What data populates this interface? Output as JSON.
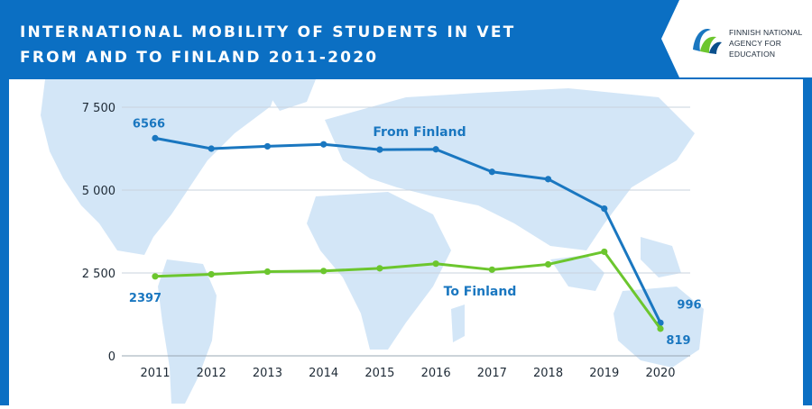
{
  "header": {
    "title_line1": "INTERNATIONAL MOBILITY OF STUDENTS IN VET",
    "title_line2": "FROM AND TO FINLAND 2011-2020",
    "logo_line1": "FINNISH NATIONAL",
    "logo_line2": "AGENCY FOR EDUCATION"
  },
  "colors": {
    "background": "#0b6fc3",
    "from_finland": "#1a77c0",
    "to_finland": "#6cc62e",
    "map": "#d3e6f7"
  },
  "chart_data": {
    "type": "line",
    "title": "INTERNATIONAL MOBILITY OF STUDENTS IN VET FROM AND TO FINLAND 2011-2020",
    "categories": [
      "2011",
      "2012",
      "2013",
      "2014",
      "2015",
      "2016",
      "2017",
      "2018",
      "2019",
      "2020"
    ],
    "series": [
      {
        "name": "From Finland",
        "values": [
          6566,
          6250,
          6320,
          6380,
          6220,
          6230,
          5550,
          5330,
          4440,
          996
        ]
      },
      {
        "name": "To Finland",
        "values": [
          2397,
          2460,
          2540,
          2560,
          2640,
          2780,
          2600,
          2760,
          3140,
          819
        ]
      }
    ],
    "data_labels": [
      {
        "series": "From Finland",
        "category": "2011",
        "text": "6566"
      },
      {
        "series": "To Finland",
        "category": "2011",
        "text": "2397"
      },
      {
        "series": "From Finland",
        "category": "2020",
        "text": "996"
      },
      {
        "series": "To Finland",
        "category": "2020",
        "text": "819"
      }
    ],
    "yticks": [
      0,
      2500,
      5000,
      7500
    ],
    "ytick_labels": [
      "0",
      "2 500",
      "5 000",
      "7 500"
    ],
    "ylim": [
      0,
      7500
    ],
    "grid": true,
    "legend": "inline labels"
  }
}
